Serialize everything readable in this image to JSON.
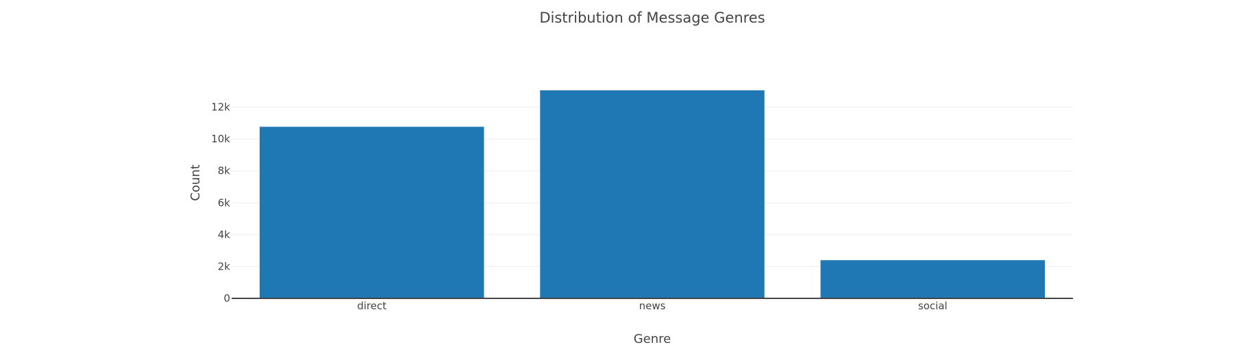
{
  "chart_data": {
    "type": "bar",
    "title": "Distribution of Message Genres",
    "xlabel": "Genre",
    "ylabel": "Count",
    "categories": [
      "direct",
      "news",
      "social"
    ],
    "values": [
      10766,
      13054,
      2396
    ],
    "ylim": [
      0,
      13741
    ],
    "yticks": [
      0,
      2000,
      4000,
      6000,
      8000,
      10000,
      12000
    ],
    "ytick_labels": [
      "0",
      "2k",
      "4k",
      "6k",
      "8k",
      "10k",
      "12k"
    ],
    "grid": true,
    "bar_color": "#1f77b4"
  }
}
